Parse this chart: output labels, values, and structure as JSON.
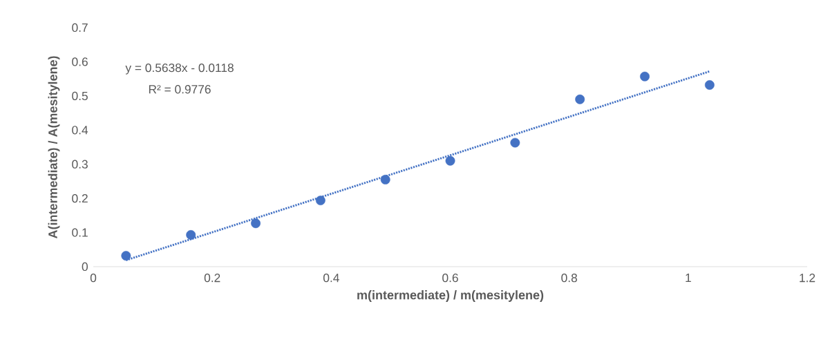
{
  "chart_data": {
    "type": "scatter",
    "xlabel": "m(intermediate) / m(mesitylene)",
    "ylabel": "A(intermediate) / A(mesitylene)",
    "annotations": [
      "y = 0.5638x - 0.0118",
      "R² = 0.9776"
    ],
    "series": [
      {
        "color": "#4472c4",
        "marker": "circle",
        "x": [
          0.055,
          0.164,
          0.273,
          0.382,
          0.491,
          0.6,
          0.709,
          0.818,
          0.927,
          1.036
        ],
        "values": [
          0.032,
          0.093,
          0.127,
          0.194,
          0.255,
          0.31,
          0.363,
          0.49,
          0.557,
          0.532
        ]
      },
      {
        "type": "line",
        "color": "#4472c4",
        "marker": "none",
        "line_style": "dotted",
        "x": [
          0.055,
          1.036
        ],
        "values": [
          0.019,
          0.572
        ]
      }
    ],
    "xlim": [
      0,
      1.2
    ],
    "ylim": [
      0,
      0.7
    ],
    "xticks": [
      0,
      0.2,
      0.4,
      0.6,
      0.8,
      1,
      1.2
    ],
    "yticks": [
      0,
      0.1,
      0.2,
      0.3,
      0.4,
      0.5,
      0.6,
      0.7
    ],
    "grid": false
  }
}
